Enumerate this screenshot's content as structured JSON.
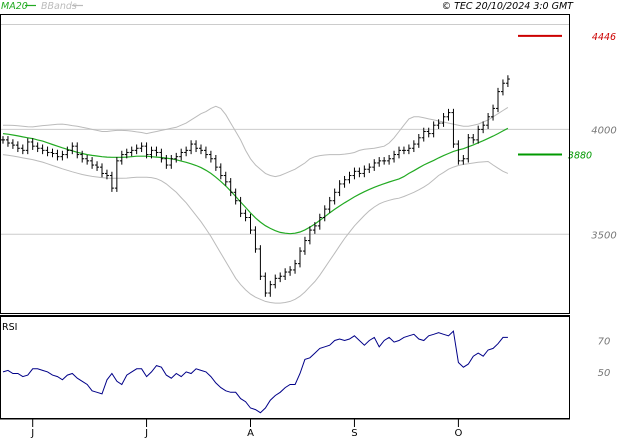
{
  "header": {
    "legend": [
      {
        "label": "MA20",
        "color": "#22aa22"
      },
      {
        "label": "BBands",
        "color": "#bbbbbb"
      }
    ],
    "copyright": "© TEC 20/10/2024 3:0 GMT"
  },
  "colors": {
    "price": "#000000",
    "ma20": "#22aa22",
    "bbands": "#bbbbbb",
    "rsi": "#000088",
    "resistance": "#cc0000",
    "support": "#009900",
    "grid": "#cccccc",
    "frame": "#000000"
  },
  "chart_data": [
    {
      "type": "ohlc",
      "title": "",
      "y_ticks": [
        "4000",
        "3500"
      ],
      "ylim": [
        3120,
        4550
      ],
      "x_ticks": [
        "J",
        "J",
        "A",
        "S",
        "O"
      ],
      "x_tick_index": [
        6,
        29,
        50,
        71,
        92
      ],
      "levels": [
        {
          "label": "4446",
          "value": 4446,
          "color": "#cc0000"
        },
        {
          "label": "3880",
          "value": 3880,
          "color": "#009900"
        }
      ],
      "close": [
        3950,
        3935,
        3925,
        3910,
        3900,
        3940,
        3920,
        3910,
        3900,
        3890,
        3885,
        3870,
        3880,
        3900,
        3920,
        3880,
        3860,
        3850,
        3830,
        3820,
        3790,
        3780,
        3720,
        3850,
        3880,
        3890,
        3900,
        3910,
        3920,
        3880,
        3900,
        3890,
        3860,
        3830,
        3860,
        3870,
        3890,
        3900,
        3930,
        3910,
        3900,
        3880,
        3860,
        3820,
        3780,
        3750,
        3700,
        3660,
        3600,
        3580,
        3520,
        3430,
        3300,
        3220,
        3260,
        3290,
        3300,
        3320,
        3330,
        3360,
        3420,
        3470,
        3520,
        3540,
        3580,
        3620,
        3660,
        3700,
        3740,
        3760,
        3780,
        3800,
        3790,
        3810,
        3820,
        3840,
        3850,
        3850,
        3860,
        3880,
        3900,
        3900,
        3910,
        3930,
        3960,
        3990,
        3980,
        4020,
        4030,
        4060,
        4080,
        3930,
        3850,
        3860,
        3960,
        3950,
        4000,
        4020,
        4060,
        4100,
        4180,
        4220,
        4240
      ],
      "ma20": [
        3980,
        3977,
        3973,
        3969,
        3964,
        3960,
        3956,
        3950,
        3944,
        3936,
        3928,
        3920,
        3912,
        3905,
        3898,
        3891,
        3885,
        3880,
        3876,
        3873,
        3870,
        3868,
        3867,
        3867,
        3867,
        3868,
        3870,
        3872,
        3872,
        3872,
        3870,
        3868,
        3866,
        3863,
        3860,
        3855,
        3849,
        3843,
        3836,
        3828,
        3818,
        3805,
        3790,
        3772,
        3752,
        3730,
        3706,
        3680,
        3654,
        3628,
        3602,
        3578,
        3558,
        3541,
        3528,
        3517,
        3509,
        3505,
        3503,
        3505,
        3511,
        3521,
        3534,
        3549,
        3566,
        3584,
        3602,
        3619,
        3635,
        3650,
        3664,
        3678,
        3691,
        3703,
        3714,
        3724,
        3733,
        3741,
        3749,
        3757,
        3764,
        3775,
        3790,
        3803,
        3817,
        3830,
        3841,
        3852,
        3864,
        3875,
        3885,
        3895,
        3902,
        3908,
        3917,
        3926,
        3936,
        3946,
        3957,
        3968,
        3980,
        3993,
        4005
      ],
      "bb_upper": [
        4020,
        4020,
        4019,
        4017,
        4015,
        4013,
        4012,
        4015,
        4018,
        4020,
        4022,
        4024,
        4025,
        4022,
        4018,
        4015,
        4010,
        4005,
        4000,
        3995,
        3990,
        3990,
        3993,
        3995,
        3995,
        3994,
        3992,
        3988,
        3985,
        3980,
        3985,
        3990,
        3995,
        4000,
        4005,
        4010,
        4020,
        4030,
        4045,
        4060,
        4075,
        4085,
        4100,
        4110,
        4100,
        4070,
        4030,
        3990,
        3950,
        3900,
        3860,
        3830,
        3810,
        3790,
        3780,
        3775,
        3780,
        3790,
        3800,
        3810,
        3825,
        3840,
        3860,
        3870,
        3875,
        3878,
        3880,
        3880,
        3880,
        3882,
        3885,
        3890,
        3900,
        3905,
        3908,
        3910,
        3915,
        3920,
        3935,
        3960,
        3990,
        4020,
        4050,
        4060,
        4060,
        4055,
        4050,
        4045,
        4040,
        4035,
        4030,
        4025,
        4020,
        4015,
        4015,
        4020,
        4025,
        4035,
        4045,
        4060,
        4075,
        4090,
        4105
      ],
      "bb_lower": [
        3880,
        3877,
        3873,
        3869,
        3864,
        3860,
        3856,
        3850,
        3844,
        3836,
        3828,
        3820,
        3812,
        3805,
        3798,
        3791,
        3785,
        3780,
        3776,
        3773,
        3770,
        3768,
        3767,
        3767,
        3767,
        3768,
        3770,
        3772,
        3772,
        3772,
        3770,
        3765,
        3755,
        3740,
        3720,
        3700,
        3675,
        3650,
        3620,
        3590,
        3560,
        3525,
        3490,
        3450,
        3410,
        3370,
        3330,
        3290,
        3260,
        3235,
        3215,
        3200,
        3190,
        3180,
        3175,
        3172,
        3172,
        3175,
        3180,
        3190,
        3205,
        3225,
        3250,
        3275,
        3305,
        3340,
        3375,
        3410,
        3445,
        3480,
        3510,
        3540,
        3565,
        3590,
        3612,
        3630,
        3645,
        3655,
        3662,
        3668,
        3672,
        3680,
        3690,
        3700,
        3712,
        3725,
        3740,
        3760,
        3780,
        3795,
        3810,
        3820,
        3828,
        3833,
        3836,
        3840,
        3843,
        3845,
        3847,
        3830,
        3815,
        3800,
        3790
      ]
    },
    {
      "type": "line",
      "title": "RSI",
      "name": "RSI",
      "y_ticks": [
        "70",
        "50"
      ],
      "ylim": [
        20,
        85
      ],
      "values": [
        50,
        51,
        49,
        49,
        47,
        48,
        52,
        52,
        51,
        50,
        48,
        47,
        45,
        48,
        49,
        46,
        44,
        42,
        38,
        37,
        36,
        45,
        49,
        44,
        42,
        48,
        50,
        52,
        52,
        47,
        50,
        54,
        53,
        48,
        46,
        49,
        47,
        50,
        49,
        52,
        51,
        50,
        47,
        43,
        40,
        38,
        37,
        37,
        33,
        31,
        27,
        26,
        24,
        27,
        32,
        35,
        37,
        40,
        42,
        42,
        49,
        58,
        59,
        62,
        65,
        66,
        67,
        70,
        71,
        70,
        71,
        73,
        70,
        67,
        70,
        72,
        66,
        70,
        72,
        69,
        70,
        72,
        73,
        74,
        71,
        70,
        73,
        74,
        75,
        74,
        73,
        76,
        56,
        53,
        55,
        60,
        62,
        60,
        64,
        65,
        68,
        72,
        72
      ]
    }
  ]
}
